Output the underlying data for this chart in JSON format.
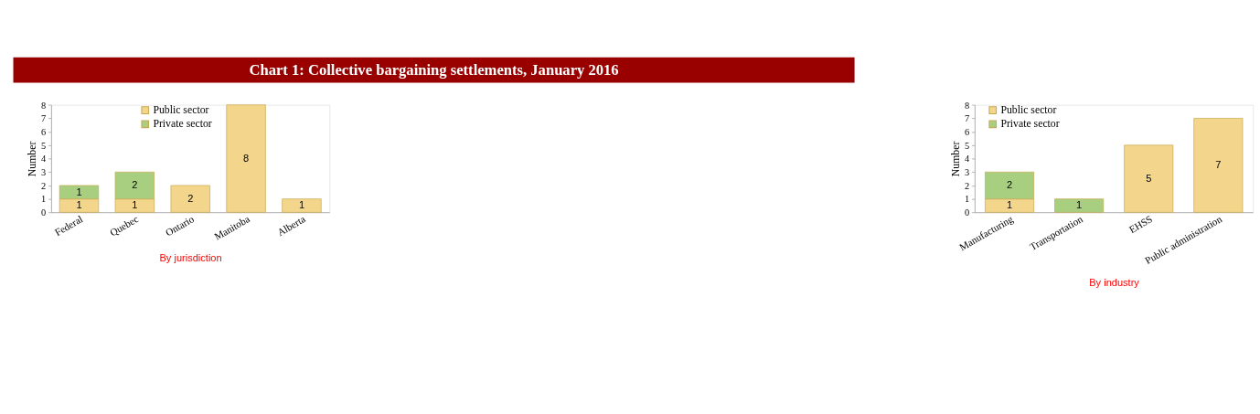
{
  "chart_data": [
    {
      "type": "bar",
      "title": "Chart 1: Collective bargaining settlements, January 2016",
      "xlabel": "By jurisdiction",
      "ylabel": "Number",
      "categories": [
        "Federal",
        "Quebec",
        "Ontario",
        "Manitoba",
        "Alberta"
      ],
      "stacked": true,
      "ylim": [
        0,
        8
      ],
      "yticks": [
        0,
        1,
        2,
        3,
        4,
        5,
        6,
        7,
        8
      ],
      "grid": false,
      "legend": "top",
      "data_labels": true,
      "series": [
        {
          "name": "Public sector",
          "color": "#f3d68c",
          "values": [
            1,
            1,
            2,
            8,
            1
          ]
        },
        {
          "name": "Private sector",
          "color": "#a8cf80",
          "values": [
            1,
            2,
            null,
            null,
            null
          ]
        }
      ]
    },
    {
      "type": "bar",
      "xlabel": "By industry",
      "ylabel": "Number",
      "categories": [
        "Manufacturing",
        "Transportation",
        "EHSS",
        "Public administration"
      ],
      "stacked": true,
      "ylim": [
        0,
        8
      ],
      "yticks": [
        0,
        1,
        2,
        3,
        4,
        5,
        6,
        7,
        8
      ],
      "grid": false,
      "legend": "top left",
      "data_labels": true,
      "series": [
        {
          "name": "Public sector",
          "color": "#f3d68c",
          "values": [
            1,
            null,
            5,
            7
          ]
        },
        {
          "name": "Private sector",
          "color": "#a8cf80",
          "values": [
            2,
            1,
            null,
            null
          ]
        }
      ]
    }
  ]
}
